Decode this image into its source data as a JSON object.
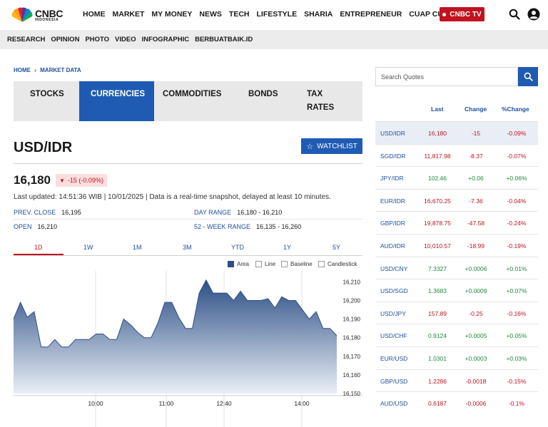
{
  "header": {
    "logo_text": "CNBC",
    "logo_sub": "INDONESIA",
    "nav": [
      "HOME",
      "MARKET",
      "MY MONEY",
      "NEWS",
      "TECH",
      "LIFESTYLE",
      "SHARIA",
      "ENTREPRENEUR",
      "CUAP CUAP CUAN"
    ],
    "tv_label": "CNBC TV"
  },
  "subnav": [
    "RESEARCH",
    "OPINION",
    "PHOTO",
    "VIDEO",
    "INFOGRAPHIC",
    "BERBUATBAIK.ID"
  ],
  "breadcrumb": {
    "home": "HOME",
    "sep": "›",
    "current": "MARKET DATA"
  },
  "tabs": [
    {
      "label": "STOCKS",
      "active": false
    },
    {
      "label": "CURRENCIES",
      "active": true
    },
    {
      "label": "COMMODITIES",
      "active": false
    },
    {
      "label": "BONDS",
      "active": false
    },
    {
      "label": "TAX RATES",
      "active": false
    }
  ],
  "instrument": {
    "pair": "USD/IDR",
    "watchlist_label": "WATCHLIST",
    "price": "16,180",
    "change": "-15 (-0.09%)",
    "updated": "Last updated: 14:51:36 WIB | 10/01/2025 | Data is a real-time snapshot, delayed at least 10 minutes.",
    "stats": {
      "prev_close_label": "PREV. CLOSE",
      "prev_close": "16,195",
      "open_label": "OPEN",
      "open": "16,210",
      "day_range_label": "DAY RANGE",
      "day_range": "16,180 - 16,210",
      "week52_label": "52 - WEEK RANGE",
      "week52": "16,135 - 16,260"
    }
  },
  "range_tabs": [
    "1D",
    "1W",
    "1M",
    "3M",
    "YTD",
    "1Y",
    "5Y"
  ],
  "chart_types": [
    "Area",
    "Line",
    "Baseline",
    "Candlestick"
  ],
  "chart_data": {
    "type": "area",
    "x_ticks": [
      "10:00",
      "11:00",
      "12:40",
      "14:00"
    ],
    "y_ticks": [
      "16,210",
      "16,200",
      "16,190",
      "16,180",
      "16,170",
      "16,160",
      "16,150"
    ],
    "ylim": [
      16150,
      16214
    ],
    "values": [
      16190,
      16199,
      16191,
      16194,
      16175,
      16175,
      16179,
      16175,
      16175,
      16179,
      16179,
      16179,
      16182,
      16182,
      16179,
      16179,
      16190,
      16187,
      16183,
      16180,
      16180,
      16188,
      16199,
      16199,
      16191,
      16185,
      16185,
      16204,
      16211,
      16204,
      16204,
      16204,
      16200,
      16205,
      16200,
      16200,
      16200,
      16201,
      16196,
      16202,
      16200,
      16200,
      16195,
      16190,
      16194,
      16185,
      16185,
      16181
    ],
    "grid": true,
    "color": "#2d4f86"
  },
  "quotes": {
    "search_placeholder": "Search Quotes",
    "headers": {
      "last": "Last",
      "change": "Change",
      "pct": "%Change"
    },
    "rows": [
      {
        "symbol": "USD/IDR",
        "last": "16,180",
        "change": "-15",
        "pct": "-0.09%",
        "dir": "neg"
      },
      {
        "symbol": "SGD/IDR",
        "last": "11,817.98",
        "change": "-8.37",
        "pct": "-0.07%",
        "dir": "neg"
      },
      {
        "symbol": "JPY/IDR",
        "last": "102.46",
        "change": "+0.06",
        "pct": "+0.06%",
        "dir": "pos"
      },
      {
        "symbol": "EUR/IDR",
        "last": "16,670.25",
        "change": "-7.36",
        "pct": "-0.04%",
        "dir": "neg"
      },
      {
        "symbol": "GBP/IDR",
        "last": "19,878.75",
        "change": "-47.58",
        "pct": "-0.24%",
        "dir": "neg"
      },
      {
        "symbol": "AUD/IDR",
        "last": "10,010.57",
        "change": "-18.99",
        "pct": "-0.19%",
        "dir": "neg"
      },
      {
        "symbol": "USD/CNY",
        "last": "7.3327",
        "change": "+0.0006",
        "pct": "+0.01%",
        "dir": "pos"
      },
      {
        "symbol": "USD/SGD",
        "last": "1.3683",
        "change": "+0.0009",
        "pct": "+0.07%",
        "dir": "pos"
      },
      {
        "symbol": "USD/JPY",
        "last": "157.89",
        "change": "-0.25",
        "pct": "-0.16%",
        "dir": "neg"
      },
      {
        "symbol": "USD/CHF",
        "last": "0.9124",
        "change": "+0.0005",
        "pct": "+0.05%",
        "dir": "pos"
      },
      {
        "symbol": "EUR/USD",
        "last": "1.0301",
        "change": "+0.0003",
        "pct": "+0.03%",
        "dir": "pos"
      },
      {
        "symbol": "GBP/USD",
        "last": "1.2286",
        "change": "-0.0018",
        "pct": "-0.15%",
        "dir": "neg"
      },
      {
        "symbol": "AUD/USD",
        "last": "0.6187",
        "change": "-0.0006",
        "pct": "-0.1%",
        "dir": "neg"
      }
    ]
  }
}
